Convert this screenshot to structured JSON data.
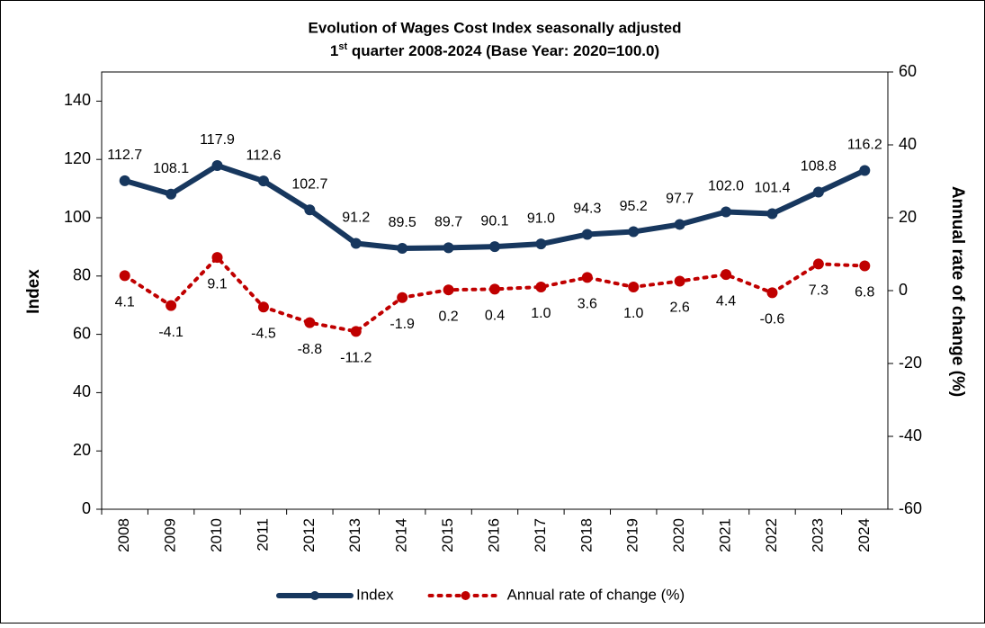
{
  "chart_data": {
    "type": "line",
    "title": "Evolution of Wages Cost Index seasonally adjusted",
    "subtitle": "1st quarter 2008-2024 (Base Year: 2020=100.0)",
    "y_label": "Index",
    "y2_label": "Annual rate of change (%)",
    "categories": [
      "2008",
      "2009",
      "2010",
      "2011",
      "2012",
      "2013",
      "2014",
      "2015",
      "2016",
      "2017",
      "2018",
      "2019",
      "2020",
      "2021",
      "2022",
      "2023",
      "2024"
    ],
    "series": [
      {
        "name": "Index",
        "color": "#17375e",
        "axis": "y",
        "values": [
          112.7,
          108.1,
          117.9,
          112.6,
          102.7,
          91.2,
          89.5,
          89.7,
          90.1,
          91.0,
          94.3,
          95.2,
          97.7,
          102.0,
          101.4,
          108.8,
          116.2
        ],
        "value_labels": [
          "112.7",
          "108.1",
          "117.9",
          "112.6",
          "102.7",
          "91.2",
          "89.5",
          "89.7",
          "90.1",
          "91.0",
          "94.3",
          "95.2",
          "97.7",
          "102.0",
          "101.4",
          "108.8",
          "116.2"
        ]
      },
      {
        "name": "Annual rate of change (%)",
        "color": "#c00000",
        "axis": "y2",
        "values": [
          4.1,
          -4.1,
          9.1,
          -4.5,
          -8.8,
          -11.2,
          -1.9,
          0.2,
          0.4,
          1.0,
          3.6,
          1.0,
          2.6,
          4.4,
          -0.6,
          7.3,
          6.8
        ],
        "value_labels": [
          "4.1",
          "-4.1",
          "9.1",
          "-4.5",
          "-8.8",
          "-11.2",
          "-1.9",
          "0.2",
          "0.4",
          "1.0",
          "3.6",
          "1.0",
          "2.6",
          "4.4",
          "-0.6",
          "7.3",
          "6.8"
        ]
      }
    ],
    "ylim": [
      0,
      150
    ],
    "yticks": [
      0,
      20,
      40,
      60,
      80,
      100,
      120,
      140
    ],
    "y2lim": [
      -60,
      60
    ],
    "y2ticks": [
      -60,
      -40,
      -20,
      0,
      20,
      40,
      60
    ],
    "grid": false,
    "legend": "bottom"
  }
}
